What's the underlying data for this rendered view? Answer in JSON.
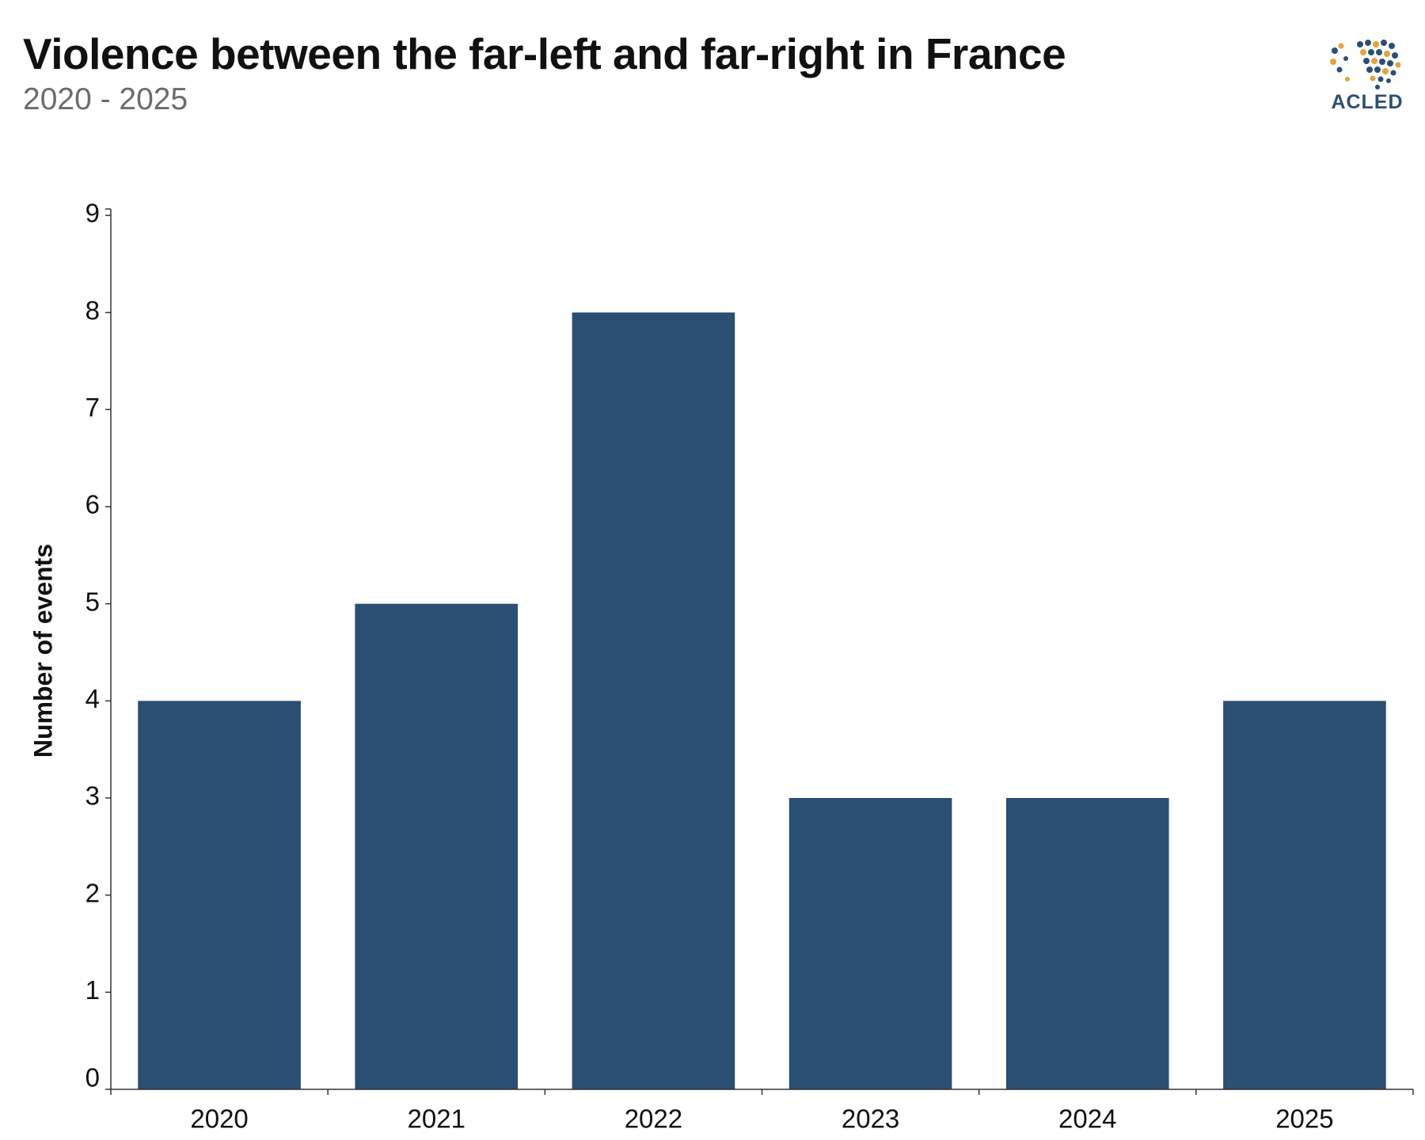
{
  "header": {
    "title": "Violence between the far-left and far-right in France",
    "subtitle": "2020 - 2025"
  },
  "logo": {
    "text": "ACLED",
    "icon": "globe-dots-icon",
    "colors": [
      "#2c4f73",
      "#e3a23b"
    ]
  },
  "chart_data": {
    "type": "bar",
    "categories": [
      "2020",
      "2021",
      "2022",
      "2023",
      "2024",
      "2025"
    ],
    "values": [
      4,
      5,
      8,
      3,
      3,
      4
    ],
    "title": "Violence between the far-left and far-right in France",
    "subtitle": "2020 - 2025",
    "xlabel": "",
    "ylabel": "Number of events",
    "ylim": [
      0,
      9
    ],
    "yticks": [
      0,
      1,
      2,
      3,
      4,
      5,
      6,
      7,
      8,
      9
    ],
    "grid": false,
    "legend": "none",
    "bar_color": "#2a4f72"
  }
}
